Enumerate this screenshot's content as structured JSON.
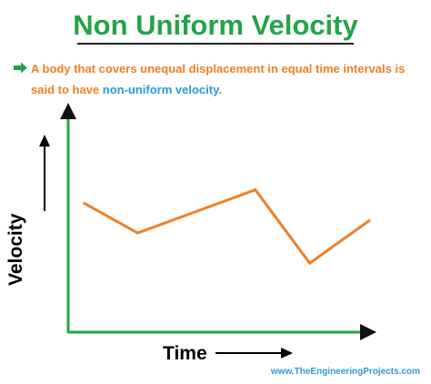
{
  "title": "Non Uniform Velocity",
  "description": {
    "text": "A body that covers unequal displacement in equal time intervals is said to have ",
    "highlight": "non-uniform velocity",
    "end": "."
  },
  "footer": "www.TheEngineeringProjects.com",
  "icons": {
    "bullet": "arrow-right-icon"
  },
  "colors": {
    "title": "#23a447",
    "description": "#f07f27",
    "highlight": "#2f9ad6",
    "axes": "#23a447",
    "line": "#f07f27",
    "footer": "#2f9ad6"
  },
  "chart_data": {
    "type": "line",
    "title": "",
    "xlabel": "Time",
    "ylabel": "Velocity",
    "grid": false,
    "legend": "none",
    "xlim": [
      0,
      1
    ],
    "ylim": [
      0,
      1
    ],
    "series": [
      {
        "x": [
          0.05,
          0.23,
          0.62,
          0.8,
          1.0
        ],
        "y": [
          0.6,
          0.46,
          0.66,
          0.32,
          0.52
        ]
      }
    ]
  }
}
